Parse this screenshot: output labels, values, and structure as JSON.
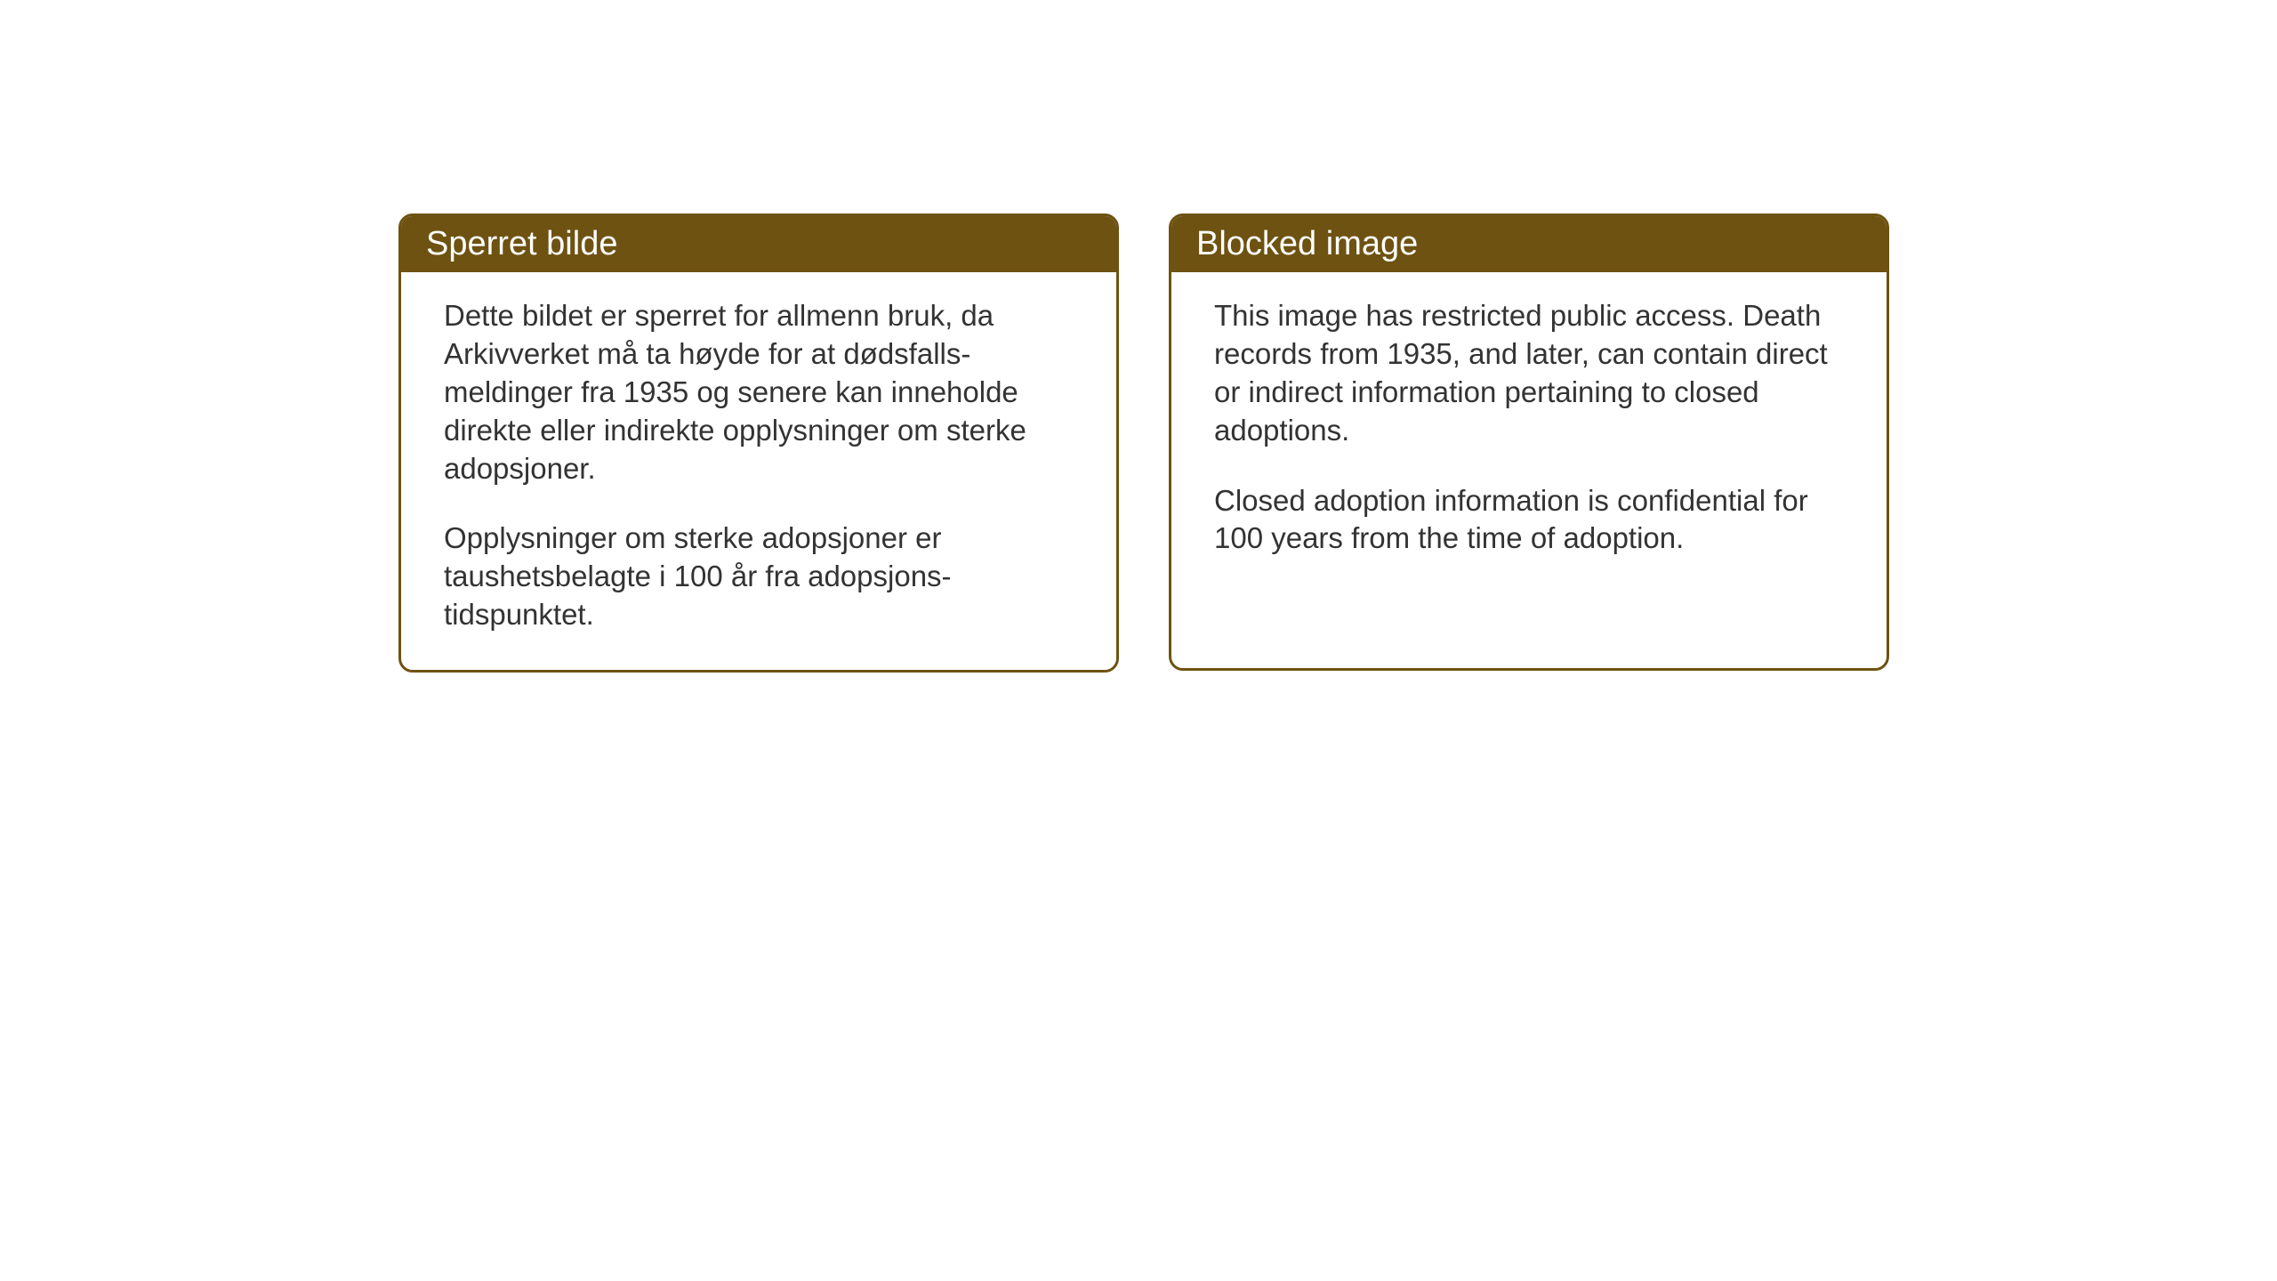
{
  "cards": [
    {
      "title": "Sperret bilde",
      "paragraph1": "Dette bildet er sperret for allmenn bruk, da Arkivverket må ta høyde for at dødsfalls-meldinger fra 1935 og senere kan inneholde direkte eller indirekte opplysninger om sterke adopsjoner.",
      "paragraph2": "Opplysninger om sterke adopsjoner er taushetsbelagte i 100 år fra adopsjons-tidspunktet."
    },
    {
      "title": "Blocked image",
      "paragraph1": "This image has restricted public access. Death records from 1935, and later, can contain direct or indirect information pertaining to closed adoptions.",
      "paragraph2": "Closed adoption information is confidential for 100 years from the time of adoption."
    }
  ],
  "styling": {
    "header_bg_color": "#6e5211",
    "header_text_color": "#ffffff",
    "border_color": "#6e5211",
    "body_text_color": "#333333",
    "background_color": "#ffffff",
    "header_fontsize": 38,
    "body_fontsize": 33,
    "border_radius": 16,
    "border_width": 3
  }
}
